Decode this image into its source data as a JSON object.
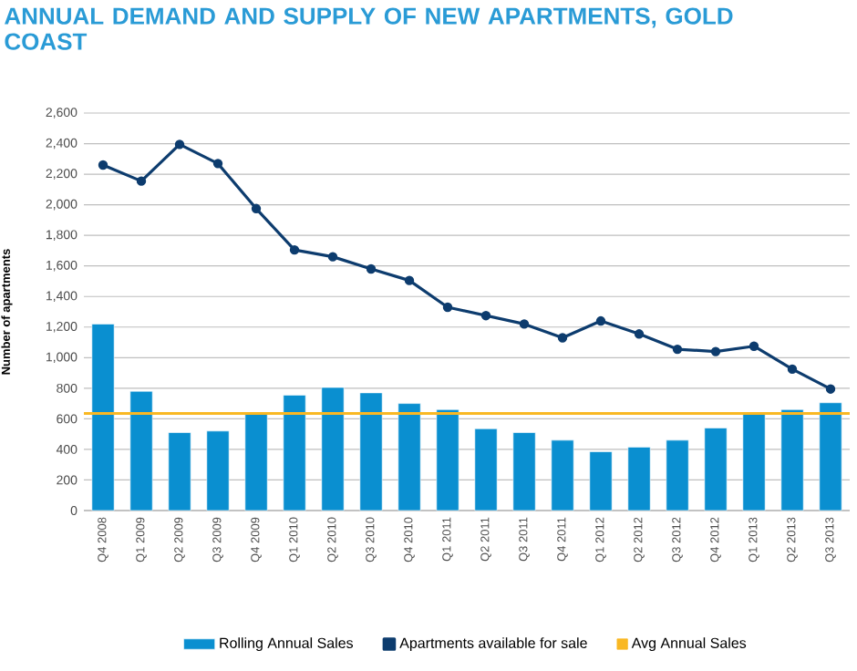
{
  "chart_data": {
    "type": "bar",
    "title": "ANNUAL DEMAND AND SUPPLY OF NEW APARTMENTS, GOLD COAST",
    "ylabel": "Number of apartments",
    "categories": [
      "Q4 2008",
      "Q1 2009",
      "Q2 2009",
      "Q3 2009",
      "Q4 2009",
      "Q1 2010",
      "Q2 2010",
      "Q3 2010",
      "Q4 2010",
      "Q1 2011",
      "Q2 2011",
      "Q3 2011",
      "Q4 2011",
      "Q1 2012",
      "Q2 2012",
      "Q3 2012",
      "Q4 2012",
      "Q1 2013",
      "Q2 2013",
      "Q3 2013"
    ],
    "series": [
      {
        "name": "Rolling Annual Sales",
        "color": "#0a8fd0",
        "values": [
          1220,
          780,
          510,
          520,
          630,
          755,
          805,
          770,
          700,
          660,
          535,
          510,
          460,
          385,
          415,
          460,
          540,
          630,
          660,
          705
        ]
      },
      {
        "name": "Apartments available for sale",
        "type": "line",
        "color": "#0d3c6e",
        "marker": "circle",
        "values": [
          2260,
          2155,
          2395,
          2270,
          1975,
          1705,
          1660,
          1580,
          1505,
          1330,
          1275,
          1220,
          1130,
          1240,
          1155,
          1055,
          1040,
          1075,
          925,
          795
        ]
      }
    ],
    "ref_lines": [
      {
        "axis": "y",
        "value": 635,
        "label": "Avg Annual Sales",
        "color": "#f9b823"
      }
    ],
    "ylim": [
      0,
      2600
    ],
    "yticks": [
      0,
      200,
      400,
      600,
      800,
      {
        "value": 1000,
        "label": "1,000"
      },
      {
        "value": 1200,
        "label": "1,200"
      },
      {
        "value": 1400,
        "label": "1,400"
      },
      {
        "value": 1600,
        "label": "1,600"
      },
      {
        "value": 1800,
        "label": "1,800"
      },
      {
        "value": 2000,
        "label": "2,000"
      },
      {
        "value": 2200,
        "label": "2,200"
      },
      {
        "value": 2400,
        "label": "2,400"
      },
      {
        "value": 2600,
        "label": "2,600"
      }
    ],
    "grid": "y",
    "legend": "bottom"
  }
}
